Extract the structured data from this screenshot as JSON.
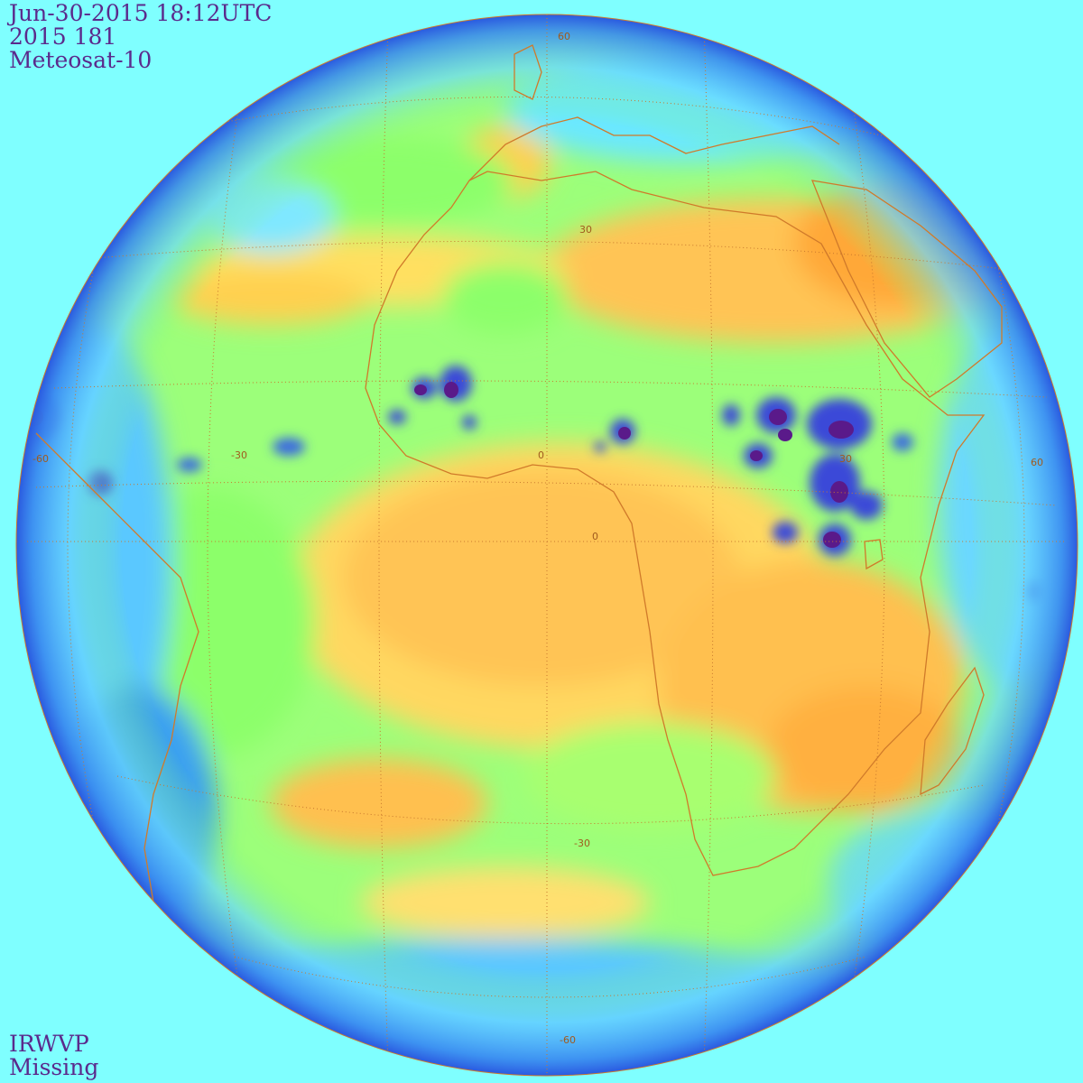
{
  "header": {
    "datetime": "Jun-30-2015 18:12UTC",
    "julian": "2015 181",
    "satellite": "Meteosat-10"
  },
  "footer": {
    "channel": "IRWVP",
    "status": "Missing"
  },
  "grid_labels": {
    "lat_60n": "60",
    "lat_30n": "30",
    "lat_0": "0",
    "lat_30s": "-30",
    "lat_60s": "-60",
    "lon_60w": "-60",
    "lon_30w": "-30",
    "lon_0": "0",
    "lon_30e": "30",
    "lon_60e": "60"
  },
  "colors": {
    "background": "#7fffff",
    "text": "#5b2a8c",
    "coastline": "#d07a2a",
    "gridline": "#c8782e",
    "dry": "#ffb845",
    "moderate": "#ffff80",
    "moist": "#8cff6a",
    "wet": "#5ac8ff",
    "very_wet": "#2a4ad8",
    "convective": "#5a1a8a"
  }
}
